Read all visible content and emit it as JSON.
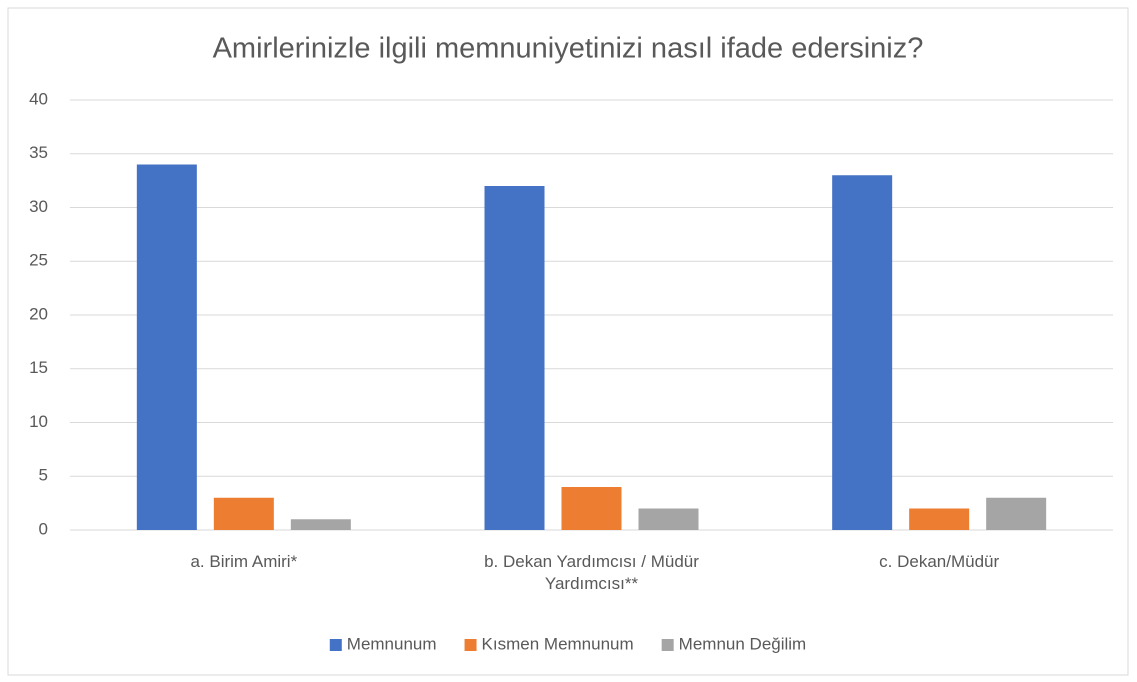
{
  "chart_data": {
    "type": "bar",
    "title": "Amirlerinizle ilgili memnuniyetinizi nasıl ifade edersiniz?",
    "categories": [
      "a. Birim Amiri*",
      "b. Dekan Yardımcısı / Müdür Yardımcısı**",
      "c. Dekan/Müdür"
    ],
    "series": [
      {
        "name": "Memnunum",
        "color": "#4472c4",
        "values": [
          34,
          32,
          33
        ]
      },
      {
        "name": "Kısmen Memnunum",
        "color": "#ed7d31",
        "values": [
          3,
          4,
          2
        ]
      },
      {
        "name": "Memnun Değilim",
        "color": "#a5a5a5",
        "values": [
          1,
          2,
          3
        ]
      }
    ],
    "ylim": [
      0,
      40
    ],
    "yticks": [
      0,
      5,
      10,
      15,
      20,
      25,
      30,
      35,
      40
    ],
    "grid": true,
    "legend": "bottom"
  }
}
